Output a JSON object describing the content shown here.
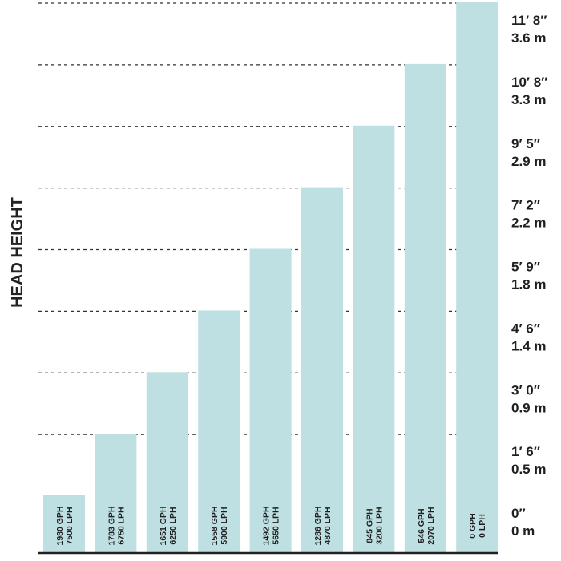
{
  "chart_data": {
    "type": "bar",
    "ylabel": "HEAD HEIGHT",
    "xlabel": "",
    "ylim": [
      0,
      3.6
    ],
    "grid": true,
    "grid_style": "dashed",
    "colors": {
      "bar": "#bfe0e2",
      "grid": "#333333",
      "baseline": "#222222",
      "text": "#1f1f1f"
    },
    "y_ticks": [
      {
        "value": 0,
        "label_ft": "0″",
        "label_m": "0 m"
      },
      {
        "value": 0.5,
        "label_ft": "1′ 6″",
        "label_m": "0.5 m"
      },
      {
        "value": 0.9,
        "label_ft": "3′ 0″",
        "label_m": "0.9 m"
      },
      {
        "value": 1.4,
        "label_ft": "4′ 6″",
        "label_m": "1.4 m"
      },
      {
        "value": 1.8,
        "label_ft": "5′ 9″",
        "label_m": "1.8 m"
      },
      {
        "value": 2.2,
        "label_ft": "7′ 2″",
        "label_m": "2.2 m"
      },
      {
        "value": 2.9,
        "label_ft": "9′ 5″",
        "label_m": "2.9 m"
      },
      {
        "value": 3.3,
        "label_ft": "10′ 8″",
        "label_m": "3.3 m"
      },
      {
        "value": 3.6,
        "label_ft": "11′ 8″",
        "label_m": "3.6 m"
      }
    ],
    "bars": [
      {
        "gph": "1980 GPH",
        "lph": "7500 LPH",
        "value": 0
      },
      {
        "gph": "1783 GPH",
        "lph": "6750 LPH",
        "value": 0.5
      },
      {
        "gph": "1651 GPH",
        "lph": "6250 LPH",
        "value": 0.9
      },
      {
        "gph": "1558 GPH",
        "lph": "5900 LPH",
        "value": 1.4
      },
      {
        "gph": "1492 GPH",
        "lph": "5650 LPH",
        "value": 1.8
      },
      {
        "gph": "1286 GPH",
        "lph": "4870 LPH",
        "value": 2.2
      },
      {
        "gph": "845 GPH",
        "lph": "3200 LPH",
        "value": 2.9
      },
      {
        "gph": "546 GPH",
        "lph": "2070 LPH",
        "value": 3.3
      },
      {
        "gph": "0 GPH",
        "lph": "0 LPH",
        "value": 3.6
      }
    ]
  }
}
